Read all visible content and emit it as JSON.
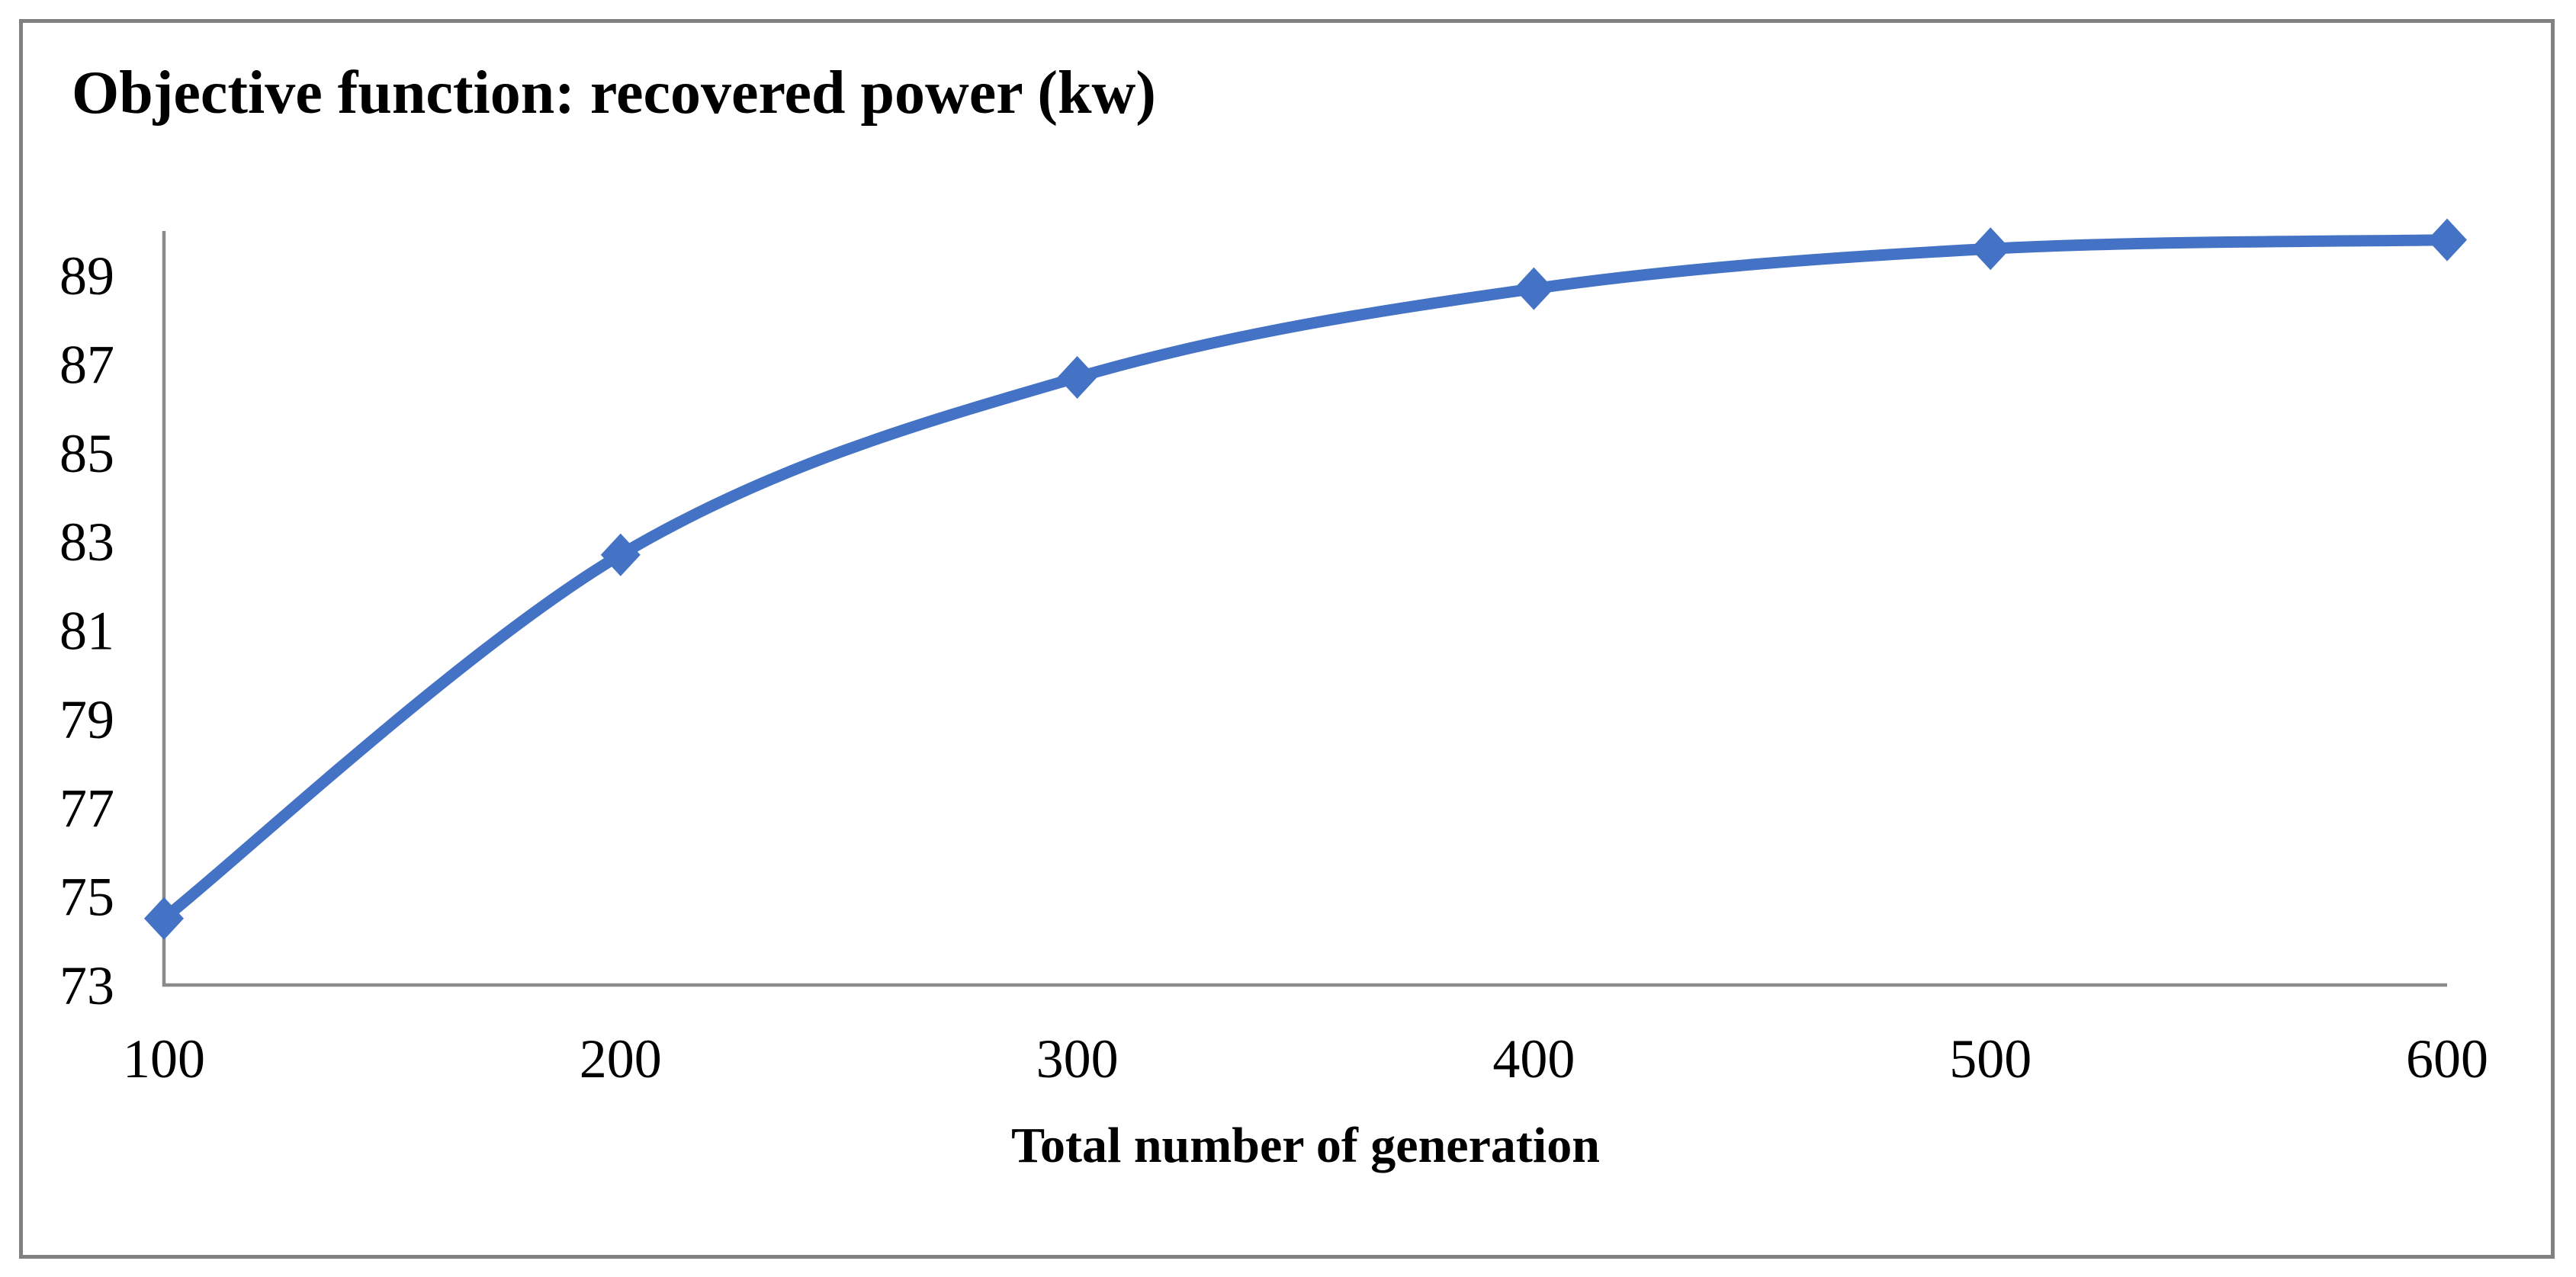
{
  "chart_data": {
    "type": "line",
    "title": "Objective function: recovered power (kw)",
    "xlabel": "Total number of generation",
    "ylabel": "",
    "x": [
      100,
      200,
      300,
      400,
      500,
      600
    ],
    "series": [
      {
        "name": "recovered power (kw)",
        "values": [
          74.5,
          82.7,
          86.7,
          88.7,
          89.6,
          89.8
        ]
      }
    ],
    "x_ticks": [
      "100",
      "200",
      "300",
      "400",
      "500",
      "600"
    ],
    "y_ticks": [
      "73",
      "75",
      "77",
      "79",
      "81",
      "83",
      "85",
      "87",
      "89"
    ],
    "xlim": [
      100,
      600
    ],
    "ylim": [
      73,
      90
    ],
    "grid": false,
    "legend": false,
    "smooth": true,
    "marker": "diamond",
    "line_color": "#4472C4",
    "axis_color": "#8a8a8a",
    "frame_color": "#808080",
    "text_color": "#000000"
  }
}
